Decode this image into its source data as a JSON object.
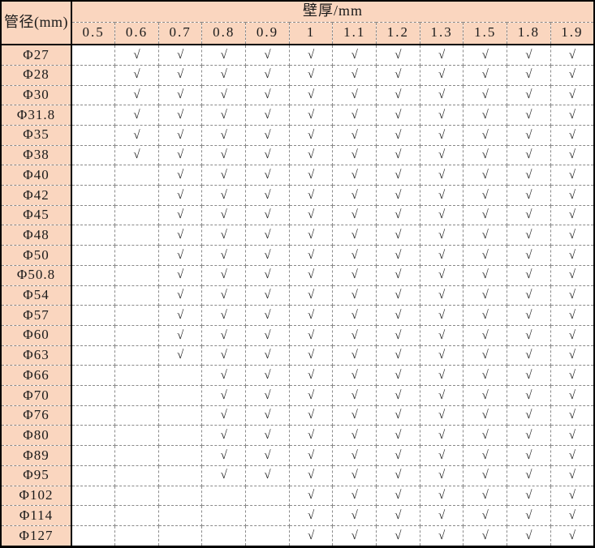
{
  "colors": {
    "header_bg": "#FAD6BF",
    "grid_line": "#8A8A8A",
    "frame": "#000000",
    "cell_bg": "#FFFFFF",
    "text": "#1A1A1A"
  },
  "chart_data": {
    "type": "table",
    "title": "",
    "corner_header": "管径(mm)",
    "span_header": "壁厚/mm",
    "columns": [
      "0.5",
      "0.6",
      "0.7",
      "0.8",
      "0.9",
      "1",
      "1.1",
      "1.2",
      "1.3",
      "1.5",
      "1.8",
      "1.9"
    ],
    "check_glyph": "√",
    "rows": [
      {
        "label": "Φ27",
        "checks": [
          0,
          1,
          1,
          1,
          1,
          1,
          1,
          1,
          1,
          1,
          1,
          1
        ]
      },
      {
        "label": "Φ28",
        "checks": [
          0,
          1,
          1,
          1,
          1,
          1,
          1,
          1,
          1,
          1,
          1,
          1
        ]
      },
      {
        "label": "Φ30",
        "checks": [
          0,
          1,
          1,
          1,
          1,
          1,
          1,
          1,
          1,
          1,
          1,
          1
        ]
      },
      {
        "label": "Φ31.8",
        "checks": [
          0,
          1,
          1,
          1,
          1,
          1,
          1,
          1,
          1,
          1,
          1,
          1
        ]
      },
      {
        "label": "Φ35",
        "checks": [
          0,
          1,
          1,
          1,
          1,
          1,
          1,
          1,
          1,
          1,
          1,
          1
        ]
      },
      {
        "label": "Φ38",
        "checks": [
          0,
          1,
          1,
          1,
          1,
          1,
          1,
          1,
          1,
          1,
          1,
          1
        ]
      },
      {
        "label": "Φ40",
        "checks": [
          0,
          0,
          1,
          1,
          1,
          1,
          1,
          1,
          1,
          1,
          1,
          1
        ]
      },
      {
        "label": "Φ42",
        "checks": [
          0,
          0,
          1,
          1,
          1,
          1,
          1,
          1,
          1,
          1,
          1,
          1
        ]
      },
      {
        "label": "Φ45",
        "checks": [
          0,
          0,
          1,
          1,
          1,
          1,
          1,
          1,
          1,
          1,
          1,
          1
        ]
      },
      {
        "label": "Φ48",
        "checks": [
          0,
          0,
          1,
          1,
          1,
          1,
          1,
          1,
          1,
          1,
          1,
          1
        ]
      },
      {
        "label": "Φ50",
        "checks": [
          0,
          0,
          1,
          1,
          1,
          1,
          1,
          1,
          1,
          1,
          1,
          1
        ]
      },
      {
        "label": "Φ50.8",
        "checks": [
          0,
          0,
          1,
          1,
          1,
          1,
          1,
          1,
          1,
          1,
          1,
          1
        ]
      },
      {
        "label": "Φ54",
        "checks": [
          0,
          0,
          1,
          1,
          1,
          1,
          1,
          1,
          1,
          1,
          1,
          1
        ]
      },
      {
        "label": "Φ57",
        "checks": [
          0,
          0,
          1,
          1,
          1,
          1,
          1,
          1,
          1,
          1,
          1,
          1
        ]
      },
      {
        "label": "Φ60",
        "checks": [
          0,
          0,
          1,
          1,
          1,
          1,
          1,
          1,
          1,
          1,
          1,
          1
        ]
      },
      {
        "label": "Φ63",
        "checks": [
          0,
          0,
          1,
          1,
          1,
          1,
          1,
          1,
          1,
          1,
          1,
          1
        ]
      },
      {
        "label": "Φ66",
        "checks": [
          0,
          0,
          0,
          1,
          1,
          1,
          1,
          1,
          1,
          1,
          1,
          1
        ]
      },
      {
        "label": "Φ70",
        "checks": [
          0,
          0,
          0,
          1,
          1,
          1,
          1,
          1,
          1,
          1,
          1,
          1
        ]
      },
      {
        "label": "Φ76",
        "checks": [
          0,
          0,
          0,
          1,
          1,
          1,
          1,
          1,
          1,
          1,
          1,
          1
        ]
      },
      {
        "label": "Φ80",
        "checks": [
          0,
          0,
          0,
          1,
          1,
          1,
          1,
          1,
          1,
          1,
          1,
          1
        ]
      },
      {
        "label": "Φ89",
        "checks": [
          0,
          0,
          0,
          1,
          1,
          1,
          1,
          1,
          1,
          1,
          1,
          1
        ]
      },
      {
        "label": "Φ95",
        "checks": [
          0,
          0,
          0,
          1,
          1,
          1,
          1,
          1,
          1,
          1,
          1,
          1
        ]
      },
      {
        "label": "Φ102",
        "checks": [
          0,
          0,
          0,
          0,
          0,
          1,
          1,
          1,
          1,
          1,
          1,
          1
        ]
      },
      {
        "label": "Φ114",
        "checks": [
          0,
          0,
          0,
          0,
          0,
          1,
          1,
          1,
          1,
          1,
          1,
          1
        ]
      },
      {
        "label": "Φ127",
        "checks": [
          0,
          0,
          0,
          0,
          0,
          1,
          1,
          1,
          1,
          1,
          1,
          1
        ]
      }
    ]
  }
}
